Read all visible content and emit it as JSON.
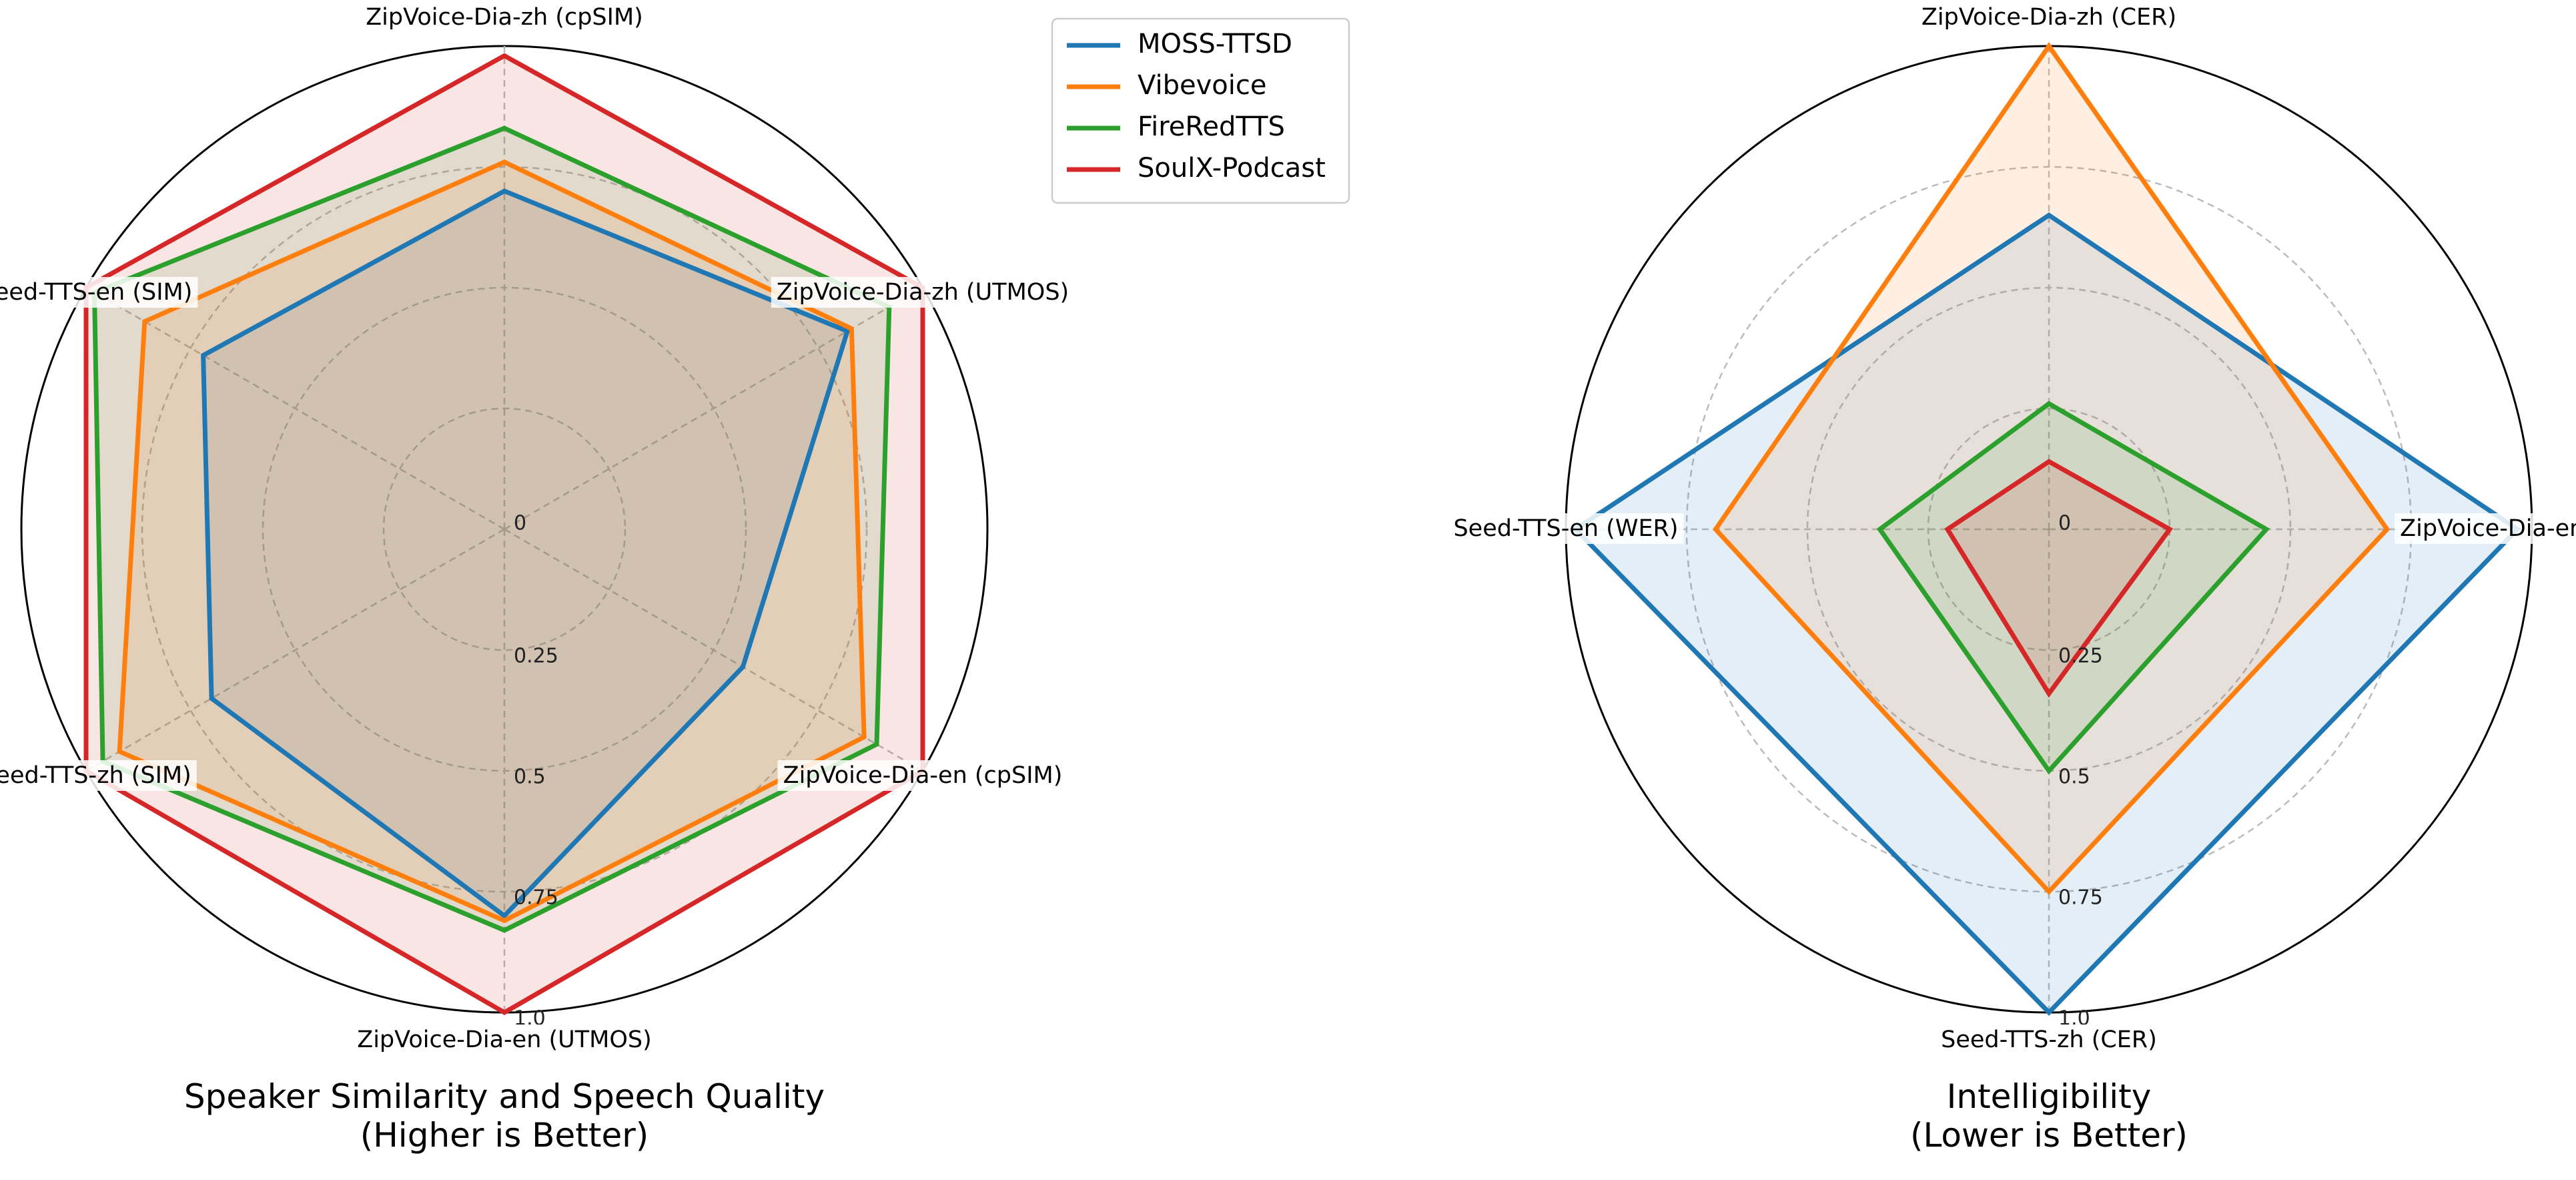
{
  "chart_data": [
    {
      "type": "radar",
      "title": "Speaker Similarity and Speech Quality\n(Higher is Better)",
      "axes": [
        "ZipVoice-Dia-zh (cpSIM)",
        "ZipVoice-Dia-zh (UTMOS)",
        "ZipVoice-Dia-en (cpSIM)",
        "ZipVoice-Dia-en (UTMOS)",
        "Seed-TTS-zh (SIM)",
        "Seed-TTS-en (SIM)"
      ],
      "radial_ticks": [
        "0",
        "0.25",
        "0.5",
        "0.75",
        "1.0"
      ],
      "radial_range": [
        0,
        1.0
      ],
      "radial_grid": "dashed",
      "series": [
        {
          "name": "MOSS-TTSD",
          "color": "#1f77b4",
          "values": [
            0.7,
            0.82,
            0.57,
            0.8,
            0.7,
            0.72
          ]
        },
        {
          "name": "Vibevoice",
          "color": "#ff7f0e",
          "values": [
            0.76,
            0.83,
            0.86,
            0.81,
            0.92,
            0.86
          ]
        },
        {
          "name": "FireRedTTS",
          "color": "#2ca02c",
          "values": [
            0.83,
            0.92,
            0.89,
            0.83,
            0.96,
            0.98
          ]
        },
        {
          "name": "SoulX-Podcast",
          "color": "#d62728",
          "values": [
            0.98,
            1.0,
            1.0,
            1.0,
            1.0,
            1.0
          ]
        }
      ]
    },
    {
      "type": "radar",
      "title": "Intelligibility\n(Lower is Better)",
      "axes": [
        "ZipVoice-Dia-zh (CER)",
        "ZipVoice-Dia-en (WER)",
        "Seed-TTS-zh (CER)",
        "Seed-TTS-en (WER)"
      ],
      "radial_ticks": [
        "0",
        "0.25",
        "0.5",
        "0.75",
        "1.0"
      ],
      "radial_range": [
        0,
        1.0
      ],
      "radial_grid": "dashed",
      "series": [
        {
          "name": "MOSS-TTSD",
          "color": "#1f77b4",
          "values": [
            0.65,
            0.97,
            1.0,
            0.98
          ]
        },
        {
          "name": "Vibevoice",
          "color": "#ff7f0e",
          "values": [
            1.0,
            0.7,
            0.75,
            0.69
          ]
        },
        {
          "name": "FireRedTTS",
          "color": "#2ca02c",
          "values": [
            0.26,
            0.45,
            0.5,
            0.35
          ]
        },
        {
          "name": "SoulX-Podcast",
          "color": "#d62728",
          "values": [
            0.14,
            0.25,
            0.34,
            0.21
          ]
        }
      ]
    }
  ],
  "legend": {
    "placement": "top-center",
    "entries": [
      "MOSS-TTSD",
      "Vibevoice",
      "FireRedTTS",
      "SoulX-Podcast"
    ]
  }
}
